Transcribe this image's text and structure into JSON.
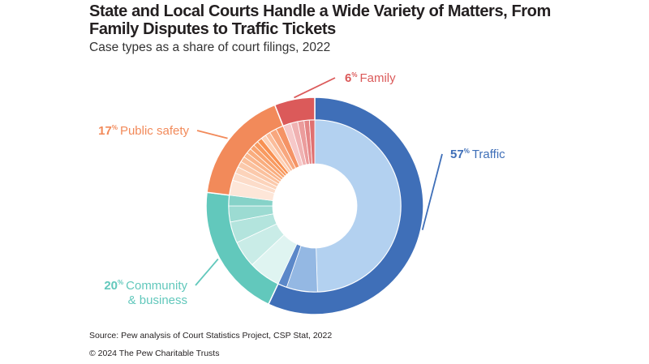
{
  "title": "State and Local Courts Handle a Wide Variety of Matters, From Family Disputes to Traffic Tickets",
  "subtitle": "Case types as a share of court filings, 2022",
  "source": "Source: Pew analysis of Court Statistics Project, CSP Stat, 2022",
  "copyright": "© 2024 The Pew Charitable Trusts",
  "chart_data": {
    "type": "pie",
    "variant": "nested donut (sunburst)",
    "categories": [
      "Traffic",
      "Community & business",
      "Public safety",
      "Family"
    ],
    "values": [
      57,
      20,
      17,
      6
    ],
    "unit": "%",
    "labels": [
      {
        "pct": "57",
        "sup": "%",
        "lines": [
          "Traffic"
        ]
      },
      {
        "pct": "20",
        "sup": "%",
        "lines": [
          "Community",
          "& business"
        ]
      },
      {
        "pct": "17",
        "sup": "%",
        "lines": [
          "Public safety"
        ]
      },
      {
        "pct": "6",
        "sup": "%",
        "lines": [
          "Family"
        ]
      }
    ],
    "outer_colors": [
      "#3f6fb8",
      "#62c8bc",
      "#f28a5a",
      "#db5a5a"
    ],
    "inner_subcategories": [
      {
        "parent": "Traffic",
        "shares": [
          49.5,
          5.8,
          1.7
        ],
        "colors": [
          "#b3d1f0",
          "#94b8e3",
          "#5b88c9"
        ]
      },
      {
        "parent": "Community & business",
        "shares": [
          6,
          5,
          4,
          3,
          2
        ],
        "colors": [
          "#dff4f1",
          "#c9ece7",
          "#b3e4dd",
          "#9cdbd2",
          "#86d2c8"
        ]
      },
      {
        "parent": "Public safety",
        "shares": [
          3,
          1.5,
          1.3,
          1.2,
          1.1,
          1,
          1,
          1,
          1,
          1,
          1,
          1,
          1.4,
          1.5
        ],
        "colors": [
          "#fde6d8",
          "#fcdcc9",
          "#fcd3ba",
          "#fbc9ab",
          "#fbc09c",
          "#fab68d",
          "#f9ad7e",
          "#f9a36f",
          "#f89a60",
          "#f89152",
          "#fdd0b6",
          "#fbbc9a",
          "#f8a77e",
          "#f59365"
        ]
      },
      {
        "parent": "Family",
        "shares": [
          1.5,
          1.3,
          1.2,
          1,
          1
        ],
        "colors": [
          "#f6c8c8",
          "#f0b2b2",
          "#eb9c9c",
          "#e58686",
          "#e07070"
        ]
      }
    ]
  }
}
